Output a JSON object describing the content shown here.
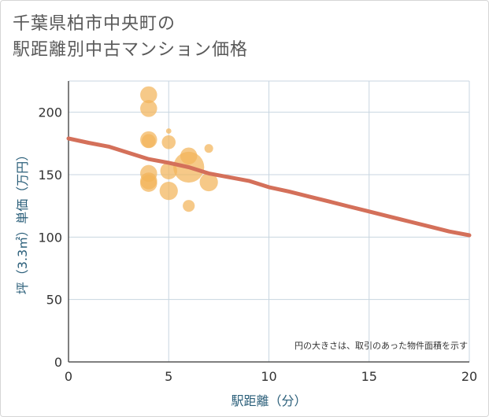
{
  "title_lines": [
    "千葉県柏市中央町の",
    "駅距離別中古マンション価格"
  ],
  "chart_data": {
    "type": "scatter",
    "title": "千葉県柏市中央町の駅距離別中古マンション価格",
    "xlabel": "駅距離（分）",
    "ylabel": "坪（3.3㎡）単価（万円）",
    "xlim": [
      0,
      20
    ],
    "ylim": [
      0,
      225
    ],
    "x_ticks": [
      0,
      5,
      10,
      15,
      20
    ],
    "y_ticks": [
      0,
      50,
      100,
      150,
      200
    ],
    "grid": true,
    "note": "円の大きさは、取引のあった物件面積を示す",
    "bubble_color": "#f2b45a",
    "trend_color": "#d4705a",
    "bubbles": [
      {
        "x": 4,
        "y": 214,
        "size": 3
      },
      {
        "x": 4,
        "y": 203,
        "size": 3
      },
      {
        "x": 4,
        "y": 178,
        "size": 3
      },
      {
        "x": 4,
        "y": 177,
        "size": 2
      },
      {
        "x": 4,
        "y": 151,
        "size": 3
      },
      {
        "x": 4,
        "y": 145,
        "size": 3
      },
      {
        "x": 4,
        "y": 143,
        "size": 3
      },
      {
        "x": 5,
        "y": 185,
        "size": 0.3
      },
      {
        "x": 5,
        "y": 176,
        "size": 2
      },
      {
        "x": 5,
        "y": 153,
        "size": 3
      },
      {
        "x": 5,
        "y": 137,
        "size": 3.5
      },
      {
        "x": 6,
        "y": 165,
        "size": 3
      },
      {
        "x": 6,
        "y": 156,
        "size": 10
      },
      {
        "x": 6,
        "y": 125,
        "size": 1.5
      },
      {
        "x": 7,
        "y": 171,
        "size": 0.8
      },
      {
        "x": 7,
        "y": 144,
        "size": 3.5
      }
    ],
    "trend": {
      "x": [
        0,
        1,
        2,
        3,
        4,
        5,
        6,
        7,
        8,
        9,
        10,
        11,
        12,
        13,
        14,
        15,
        16,
        17,
        18,
        19,
        20
      ],
      "y": [
        179,
        175.5,
        172.5,
        167.5,
        162.5,
        159.5,
        156,
        151,
        148,
        145,
        140,
        136.5,
        132.5,
        128.5,
        124.5,
        120.5,
        116.5,
        112.5,
        108.5,
        104.5,
        101.5
      ]
    }
  }
}
